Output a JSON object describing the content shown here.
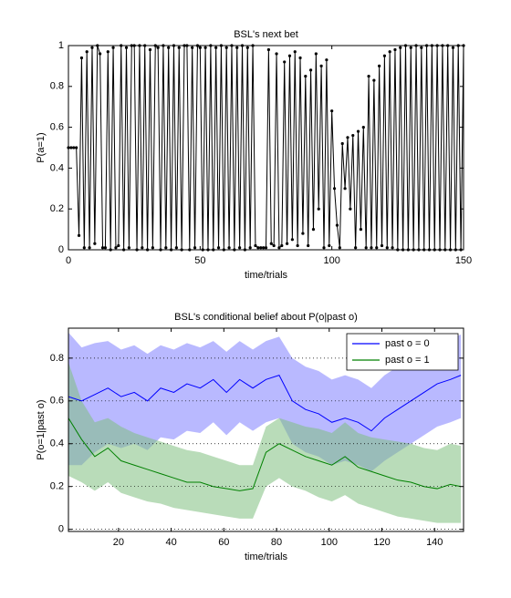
{
  "chart_data": [
    {
      "type": "line",
      "title": "BSL's next bet",
      "xlabel": "time/trials",
      "ylabel": "P(a=1)",
      "color": "#000000",
      "x": [
        0,
        1,
        2,
        3,
        4,
        5,
        6,
        7,
        8,
        9,
        10,
        11,
        12,
        13,
        14,
        15,
        16,
        17,
        18,
        19,
        20,
        21,
        22,
        23,
        24,
        25,
        26,
        27,
        28,
        29,
        30,
        31,
        32,
        33,
        34,
        35,
        36,
        37,
        38,
        39,
        40,
        41,
        42,
        43,
        44,
        45,
        46,
        47,
        48,
        49,
        50,
        51,
        52,
        53,
        54,
        55,
        56,
        57,
        58,
        59,
        60,
        61,
        62,
        63,
        64,
        65,
        66,
        67,
        68,
        69,
        70,
        71,
        72,
        73,
        74,
        75,
        76,
        77,
        78,
        79,
        80,
        81,
        82,
        83,
        84,
        85,
        86,
        87,
        88,
        89,
        90,
        91,
        92,
        93,
        94,
        95,
        96,
        97,
        98,
        99,
        100,
        101,
        102,
        103,
        104,
        105,
        106,
        107,
        108,
        109,
        110,
        111,
        112,
        113,
        114,
        115,
        116,
        117,
        118,
        119,
        120,
        121,
        122,
        123,
        124,
        125,
        126,
        127,
        128,
        129,
        130,
        131,
        132,
        133,
        134,
        135,
        136,
        137,
        138,
        139,
        140,
        141,
        142,
        143,
        144,
        145,
        146,
        147,
        148,
        149,
        150
      ],
      "values": [
        0.5,
        0.5,
        0.5,
        0.5,
        0.07,
        0.94,
        0.01,
        0.97,
        0.01,
        0.99,
        0.03,
        1,
        0.96,
        0.01,
        0.01,
        0.97,
        0,
        0.99,
        0.01,
        0.02,
        1,
        0,
        0.99,
        0.01,
        1,
        1,
        0,
        1,
        0.01,
        1,
        0,
        0.98,
        0.01,
        1,
        0.99,
        0,
        1,
        0.01,
        0.99,
        0,
        1,
        0.01,
        0.99,
        0,
        1,
        1,
        0,
        0.99,
        0.01,
        1,
        0.99,
        0,
        0.99,
        0,
        1,
        0,
        0.99,
        0.01,
        1,
        0,
        0.99,
        0.01,
        1,
        0,
        0.99,
        0.01,
        1,
        0,
        0.99,
        0.01,
        1,
        0.02,
        0.01,
        0.01,
        0.01,
        0.01,
        0.98,
        0.03,
        0.02,
        0.96,
        0.01,
        0.02,
        0.92,
        0.03,
        0.95,
        0.05,
        0.97,
        0.02,
        0.94,
        0.08,
        0.85,
        0.02,
        0.88,
        0.1,
        0.96,
        0.2,
        0.9,
        0.01,
        0.93,
        0.02,
        0.68,
        0.3,
        0.12,
        0.01,
        0.52,
        0.3,
        0.55,
        0.2,
        0.56,
        0.01,
        0.58,
        0.1,
        0.6,
        0.01,
        0.85,
        0.01,
        0.83,
        0.01,
        0.9,
        0.02,
        0.95,
        0.01,
        0.97,
        0.01,
        0.98,
        0,
        0.99,
        0,
        1,
        0,
        0.99,
        0,
        1,
        0,
        0.99,
        0,
        1,
        0,
        1,
        0,
        1,
        0,
        1,
        0,
        1,
        0,
        0.99,
        0,
        1,
        0,
        1
      ],
      "xlim": [
        0,
        150
      ],
      "xticks": [
        0,
        50,
        100,
        150
      ],
      "ylim": [
        0,
        1
      ],
      "yticks": [
        0,
        0.2,
        0.4,
        0.6,
        0.8,
        1
      ],
      "grid": false
    },
    {
      "type": "band",
      "title": "BSL's conditional belief about P(o|past o)",
      "xlabel": "time/trials",
      "ylabel": "P(o=1|past o)",
      "x": [
        1,
        6,
        11,
        16,
        21,
        26,
        31,
        36,
        41,
        46,
        51,
        56,
        61,
        66,
        71,
        76,
        81,
        86,
        91,
        96,
        101,
        106,
        111,
        116,
        121,
        126,
        131,
        136,
        141,
        146,
        150
      ],
      "series": [
        {
          "name": "past o = 0",
          "color": "#0000ff",
          "band_color": "#7f7fff",
          "values": [
            0.62,
            0.6,
            0.63,
            0.66,
            0.62,
            0.64,
            0.6,
            0.66,
            0.64,
            0.68,
            0.66,
            0.7,
            0.64,
            0.7,
            0.66,
            0.7,
            0.72,
            0.6,
            0.56,
            0.54,
            0.5,
            0.52,
            0.5,
            0.46,
            0.52,
            0.56,
            0.6,
            0.64,
            0.68,
            0.7,
            0.72
          ],
          "upper": [
            0.92,
            0.85,
            0.87,
            0.88,
            0.84,
            0.86,
            0.82,
            0.86,
            0.84,
            0.87,
            0.85,
            0.88,
            0.83,
            0.88,
            0.84,
            0.88,
            0.9,
            0.8,
            0.76,
            0.74,
            0.7,
            0.72,
            0.7,
            0.66,
            0.72,
            0.76,
            0.8,
            0.84,
            0.87,
            0.89,
            0.91
          ],
          "lower": [
            0.3,
            0.3,
            0.36,
            0.4,
            0.38,
            0.4,
            0.37,
            0.43,
            0.42,
            0.46,
            0.45,
            0.5,
            0.44,
            0.5,
            0.46,
            0.5,
            0.52,
            0.4,
            0.36,
            0.34,
            0.3,
            0.32,
            0.3,
            0.27,
            0.32,
            0.36,
            0.4,
            0.44,
            0.48,
            0.5,
            0.52
          ]
        },
        {
          "name": "past o = 1",
          "color": "#008000",
          "band_color": "#80c080",
          "values": [
            0.52,
            0.42,
            0.34,
            0.38,
            0.32,
            0.3,
            0.28,
            0.26,
            0.24,
            0.22,
            0.22,
            0.2,
            0.19,
            0.18,
            0.19,
            0.36,
            0.4,
            0.37,
            0.34,
            0.32,
            0.3,
            0.34,
            0.29,
            0.27,
            0.25,
            0.23,
            0.22,
            0.2,
            0.19,
            0.21,
            0.2
          ],
          "upper": [
            0.78,
            0.6,
            0.5,
            0.52,
            0.48,
            0.45,
            0.43,
            0.41,
            0.39,
            0.37,
            0.36,
            0.34,
            0.32,
            0.3,
            0.3,
            0.48,
            0.52,
            0.5,
            0.48,
            0.47,
            0.45,
            0.5,
            0.45,
            0.43,
            0.42,
            0.41,
            0.4,
            0.38,
            0.37,
            0.4,
            0.39
          ],
          "lower": [
            0.25,
            0.22,
            0.18,
            0.22,
            0.17,
            0.15,
            0.13,
            0.12,
            0.1,
            0.09,
            0.08,
            0.07,
            0.06,
            0.05,
            0.05,
            0.2,
            0.24,
            0.2,
            0.18,
            0.15,
            0.13,
            0.16,
            0.12,
            0.1,
            0.08,
            0.06,
            0.05,
            0.04,
            0.03,
            0.03,
            0.03
          ]
        }
      ],
      "xlim": [
        1,
        151
      ],
      "xticks": [
        20,
        40,
        60,
        80,
        100,
        120,
        140
      ],
      "ylim": [
        -0.01,
        0.94
      ],
      "yticks": [
        0,
        0.2,
        0.4,
        0.6,
        0.8
      ],
      "grid": true,
      "legend": "upper right"
    }
  ]
}
